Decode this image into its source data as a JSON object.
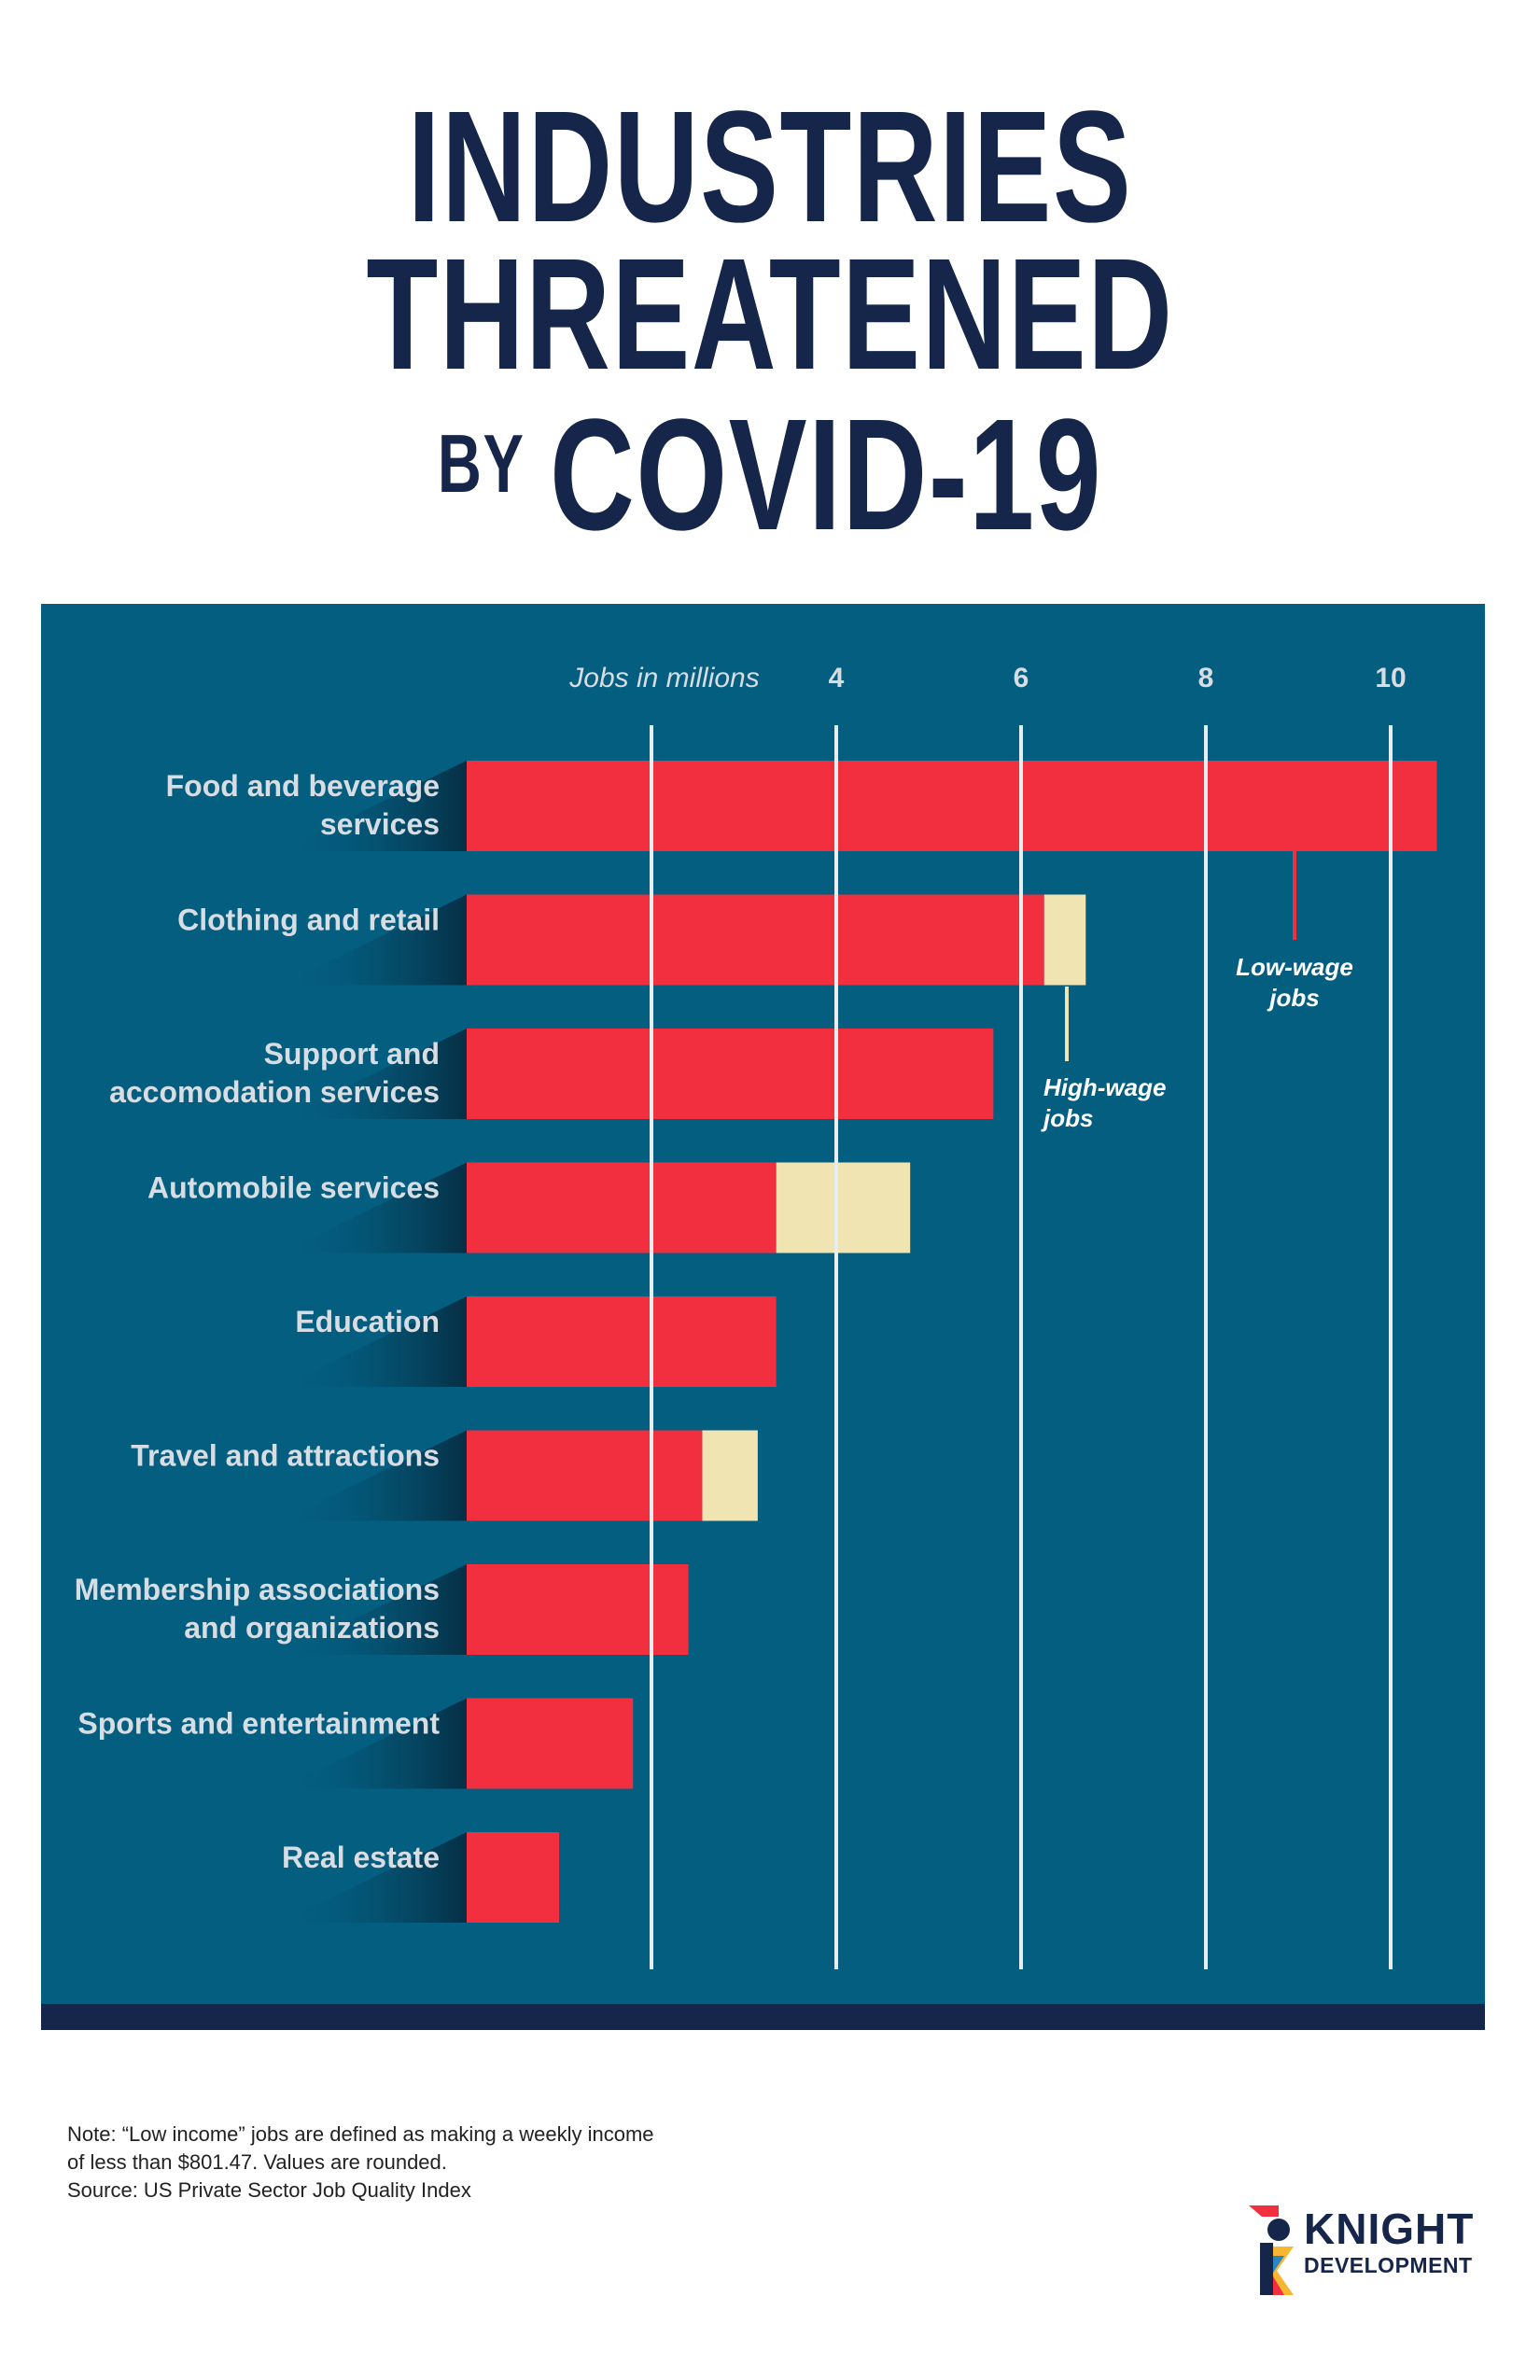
{
  "title": {
    "line1": "INDUSTRIES",
    "line2": "THREATENED",
    "line3_small": "BY",
    "line3_big": "COVID-19"
  },
  "chart_data": {
    "type": "bar",
    "orientation": "horizontal",
    "stacked": true,
    "xlabel": "Jobs in millions",
    "x_ticks": [
      4,
      6,
      8,
      10
    ],
    "xlim": [
      0,
      10.7
    ],
    "grid": true,
    "categories": [
      [
        "Food and beverage",
        "services"
      ],
      [
        "Clothing and retail"
      ],
      [
        "Support and",
        "accomodation services"
      ],
      [
        "Automobile services"
      ],
      [
        "Education"
      ],
      [
        "Travel and attractions"
      ],
      [
        "Membership associations",
        "and organizations"
      ],
      [
        "Sports and entertainment"
      ],
      [
        "Real estate"
      ]
    ],
    "series": [
      {
        "name": "Low-wage jobs",
        "color": "#f22f3f",
        "values": [
          10.5,
          6.25,
          5.7,
          3.35,
          3.35,
          2.55,
          2.4,
          1.8,
          1.0
        ]
      },
      {
        "name": "High-wage jobs",
        "color": "#f1e4b3",
        "values": [
          0,
          0.45,
          0,
          1.45,
          0,
          0.6,
          0,
          0,
          0
        ]
      }
    ],
    "annotations": {
      "low_wage": [
        "Low-wage",
        "jobs"
      ],
      "high_wage": [
        "High-wage",
        "jobs"
      ]
    }
  },
  "footnote": {
    "line1": "Note: “Low income” jobs are defined as making a weekly income",
    "line2": "of less than $801.47. Values are rounded.",
    "line3": "Source: US Private Sector Job Quality Index"
  },
  "logo": {
    "word": "KNIGHT",
    "sub": "DEVELOPMENT"
  },
  "colors": {
    "navy": "#16254a",
    "panel": "#045e80",
    "low_wage": "#f22f3f",
    "high_wage": "#f1e4b3",
    "label_text": "#d7dde2",
    "grid": "#e8edf0"
  }
}
